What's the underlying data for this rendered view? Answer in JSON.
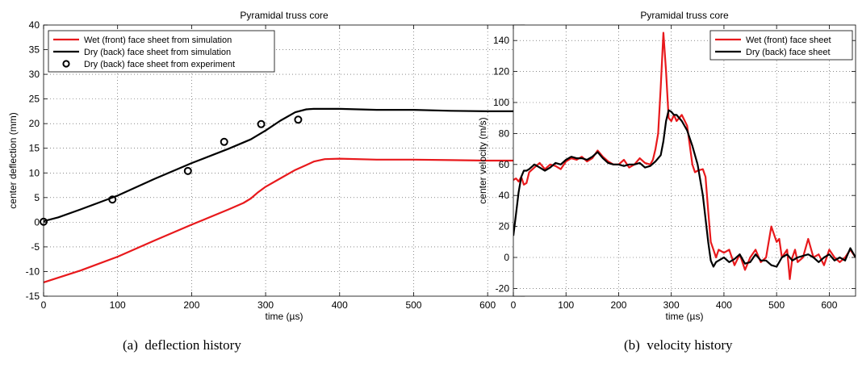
{
  "chart_data": [
    {
      "type": "line",
      "title": "Pyramidal truss core",
      "xlabel": "time (µs)",
      "ylabel": "center deflection (mm)",
      "xlim": [
        0,
        650
      ],
      "ylim": [
        -15,
        40
      ],
      "xticks": [
        0,
        100,
        200,
        300,
        400,
        500,
        600
      ],
      "yticks": [
        -15,
        -10,
        -5,
        0,
        5,
        10,
        15,
        20,
        25,
        30,
        35,
        40
      ],
      "grid": true,
      "legend_position": "top-left",
      "caption_label": "(a)",
      "caption_text": "deflection history",
      "series": [
        {
          "name": "Wet (front) face sheet from simulation",
          "style": "line",
          "color": "#e8191c",
          "x": [
            0,
            50,
            100,
            150,
            200,
            250,
            270,
            280,
            290,
            300,
            320,
            340,
            355,
            365,
            380,
            400,
            450,
            500,
            550,
            600,
            650
          ],
          "y": [
            -12.2,
            -9.8,
            -7.0,
            -3.7,
            -0.5,
            2.6,
            3.9,
            4.8,
            6.1,
            7.2,
            8.9,
            10.6,
            11.6,
            12.3,
            12.8,
            12.9,
            12.7,
            12.7,
            12.6,
            12.5,
            12.5
          ]
        },
        {
          "name": "Dry (back) face sheet from simulation",
          "style": "line",
          "color": "#000000",
          "x": [
            0,
            20,
            50,
            100,
            150,
            200,
            250,
            280,
            300,
            320,
            340,
            355,
            365,
            380,
            400,
            450,
            500,
            550,
            600,
            650
          ],
          "y": [
            0.2,
            1.0,
            2.6,
            5.4,
            8.8,
            12.0,
            14.9,
            16.8,
            18.6,
            20.6,
            22.3,
            22.9,
            23.0,
            23.0,
            23.0,
            22.8,
            22.8,
            22.6,
            22.5,
            22.5
          ]
        },
        {
          "name": "Dry (back) face sheet from experiment",
          "style": "markers",
          "color": "#000000",
          "x": [
            0,
            93,
            195,
            244,
            294,
            344
          ],
          "y": [
            0.1,
            4.6,
            10.4,
            16.3,
            19.9,
            20.8
          ]
        }
      ]
    },
    {
      "type": "line",
      "title": "Pyramidal truss core",
      "xlabel": "time (µs)",
      "ylabel": "center velocity (m/s)",
      "xlim": [
        0,
        650
      ],
      "ylim": [
        -25,
        150
      ],
      "xticks": [
        0,
        100,
        200,
        300,
        400,
        500,
        600
      ],
      "yticks": [
        -20,
        0,
        20,
        40,
        60,
        80,
        100,
        120,
        140
      ],
      "grid": true,
      "legend_position": "top-right",
      "caption_label": "(b)",
      "caption_text": "velocity history",
      "series": [
        {
          "name": "Wet (front) face sheet",
          "style": "line",
          "color": "#e8191c",
          "x": [
            0,
            5,
            10,
            15,
            20,
            25,
            30,
            40,
            50,
            60,
            70,
            80,
            90,
            100,
            110,
            120,
            130,
            140,
            150,
            160,
            170,
            180,
            190,
            200,
            210,
            220,
            230,
            240,
            250,
            260,
            265,
            270,
            275,
            280,
            285,
            290,
            295,
            300,
            305,
            310,
            320,
            330,
            340,
            345,
            350,
            360,
            365,
            370,
            375,
            380,
            385,
            390,
            400,
            410,
            420,
            430,
            440,
            450,
            460,
            470,
            480,
            490,
            495,
            500,
            505,
            510,
            520,
            525,
            530,
            535,
            540,
            550,
            560,
            570,
            580,
            590,
            600,
            610,
            620,
            630,
            640,
            650
          ],
          "y": [
            50,
            51,
            49,
            52,
            47,
            48,
            55,
            58,
            61,
            57,
            60,
            59,
            57,
            62,
            64,
            63,
            65,
            62,
            64,
            69,
            65,
            62,
            60,
            60,
            63,
            58,
            60,
            64,
            61,
            60,
            63,
            70,
            80,
            110,
            145,
            120,
            90,
            88,
            92,
            88,
            92,
            85,
            60,
            55,
            56,
            57,
            52,
            30,
            10,
            5,
            0,
            5,
            3,
            5,
            -5,
            2,
            -8,
            0,
            5,
            -3,
            0,
            20,
            15,
            10,
            12,
            0,
            5,
            -14,
            0,
            5,
            -3,
            0,
            12,
            0,
            2,
            -5,
            5,
            0,
            -3,
            0,
            5,
            0
          ]
        },
        {
          "name": "Dry (back) face sheet",
          "style": "line",
          "color": "#000000",
          "x": [
            0,
            5,
            10,
            15,
            20,
            25,
            30,
            40,
            50,
            60,
            70,
            80,
            90,
            100,
            110,
            120,
            130,
            140,
            150,
            160,
            170,
            180,
            190,
            200,
            210,
            220,
            230,
            240,
            250,
            260,
            270,
            280,
            285,
            290,
            295,
            300,
            305,
            310,
            320,
            330,
            340,
            350,
            360,
            370,
            375,
            380,
            385,
            390,
            400,
            410,
            420,
            430,
            440,
            450,
            460,
            470,
            480,
            490,
            500,
            510,
            520,
            530,
            540,
            550,
            560,
            570,
            580,
            590,
            600,
            610,
            620,
            630,
            640,
            650
          ],
          "y": [
            14,
            28,
            42,
            52,
            56,
            56,
            57,
            60,
            58,
            56,
            58,
            61,
            60,
            63,
            65,
            64,
            64,
            63,
            65,
            68,
            64,
            61,
            60,
            60,
            59,
            60,
            60,
            61,
            58,
            59,
            62,
            66,
            75,
            88,
            95,
            94,
            92,
            92,
            88,
            82,
            72,
            60,
            40,
            10,
            -2,
            -6,
            -3,
            -2,
            0,
            -3,
            -1,
            2,
            -4,
            -3,
            2,
            -2,
            -2,
            -5,
            -6,
            0,
            2,
            -2,
            0,
            1,
            2,
            0,
            -3,
            0,
            2,
            -2,
            0,
            -2,
            6,
            0
          ]
        }
      ]
    }
  ]
}
